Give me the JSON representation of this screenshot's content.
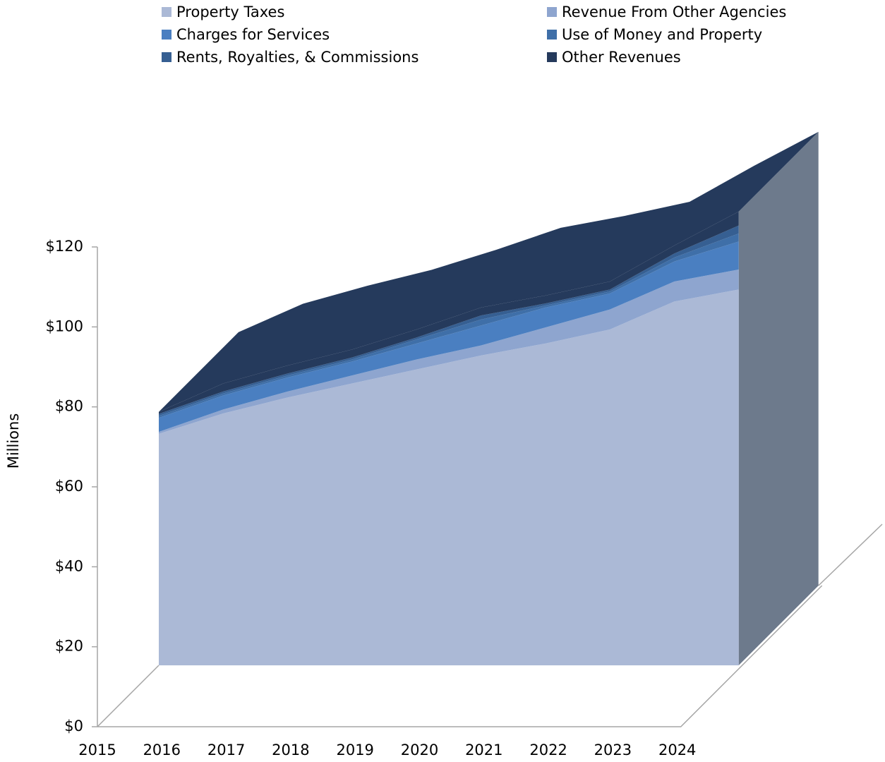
{
  "chart_data": {
    "type": "area3d",
    "categories": [
      "2015",
      "2016",
      "2017",
      "2018",
      "2019",
      "2020",
      "2021",
      "2022",
      "2023",
      "2024"
    ],
    "series": [
      {
        "name": "Property Taxes",
        "color": "#abb9d6",
        "values": [
          57.9,
          63,
          67,
          70.5,
          74,
          77.5,
          80.5,
          84,
          91,
          94
        ]
      },
      {
        "name": "Revenue From Other Agencies",
        "color": "#8ea5cf",
        "values": [
          0.5,
          1,
          1.5,
          2,
          2.5,
          2.5,
          4,
          5,
          5,
          5
        ]
      },
      {
        "name": "Charges for Services",
        "color": "#4a7fc1",
        "values": [
          3.5,
          3.5,
          3.5,
          3.5,
          4,
          5,
          5,
          4,
          5,
          7
        ]
      },
      {
        "name": "Use of Money and Property",
        "color": "#3f6fa8",
        "values": [
          0.5,
          0.5,
          0.5,
          0.5,
          1,
          1.5,
          0.5,
          0.5,
          1,
          2
        ]
      },
      {
        "name": "Rents, Royalties, & Commissions",
        "color": "#365f92",
        "values": [
          0.5,
          0.5,
          0.5,
          0.5,
          0.5,
          1,
          0.5,
          0.5,
          1,
          2
        ]
      },
      {
        "name": "Other Revenues",
        "color": "#253a5c",
        "values": [
          0.5,
          2,
          2,
          2,
          2,
          2,
          2,
          2,
          2,
          3.5
        ]
      }
    ],
    "ylabel": "Millions",
    "ylim": [
      0,
      120
    ],
    "yticks": [
      {
        "value": 0,
        "label": "$0"
      },
      {
        "value": 20,
        "label": "$20"
      },
      {
        "value": 40,
        "label": "$40"
      },
      {
        "value": 60,
        "label": "$60"
      },
      {
        "value": 80,
        "label": "$80"
      },
      {
        "value": 100,
        "label": "$100"
      },
      {
        "value": 120,
        "label": "$120"
      }
    ],
    "legend": "top"
  }
}
